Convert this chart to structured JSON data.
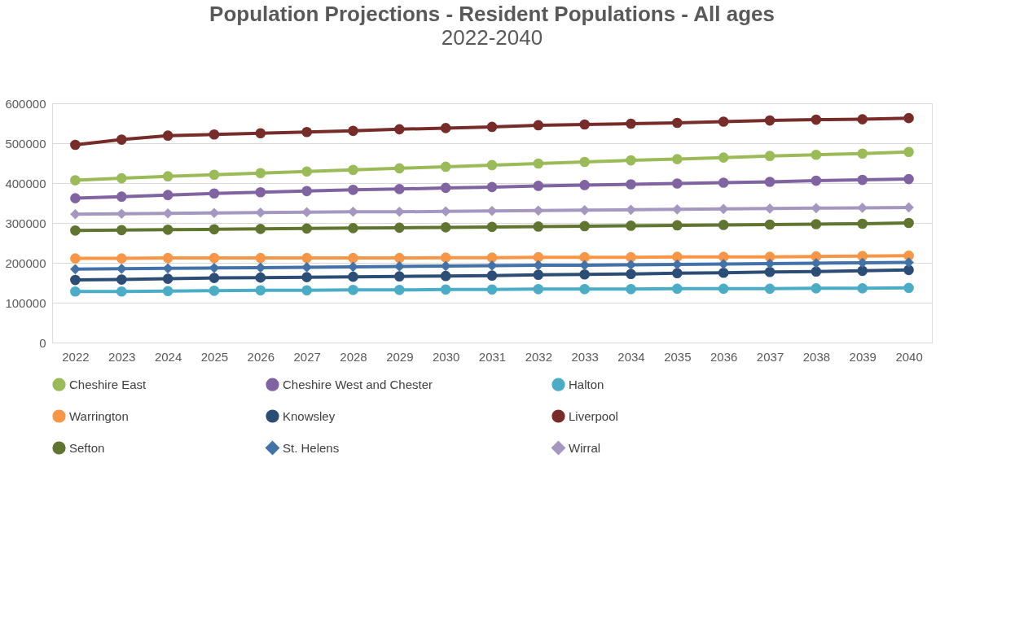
{
  "chart_data": {
    "type": "line",
    "title": "Population Projections - Resident Populations - All ages",
    "subtitle": "2022-2040",
    "categories": [
      "2022",
      "2023",
      "2024",
      "2025",
      "2026",
      "2027",
      "2028",
      "2029",
      "2030",
      "2031",
      "2032",
      "2033",
      "2034",
      "2035",
      "2036",
      "2037",
      "2038",
      "2039",
      "2040"
    ],
    "series": [
      {
        "name": "Cheshire East",
        "color": "#9bbb59",
        "marker": "circle",
        "values": [
          407000,
          412000,
          417000,
          421000,
          425000,
          429000,
          433000,
          437000,
          441000,
          445000,
          449000,
          453000,
          457000,
          460000,
          464000,
          468000,
          471000,
          474000,
          478000
        ]
      },
      {
        "name": "Cheshire West and Chester",
        "color": "#8064a2",
        "marker": "circle",
        "values": [
          362000,
          366000,
          370000,
          374000,
          377000,
          380000,
          383000,
          385000,
          388000,
          390000,
          393000,
          395000,
          397000,
          399000,
          401000,
          403000,
          406000,
          408000,
          410000
        ]
      },
      {
        "name": "Halton",
        "color": "#4bacc6",
        "marker": "circle",
        "values": [
          128000,
          128000,
          129000,
          130000,
          131000,
          131000,
          132000,
          132000,
          133000,
          133000,
          134000,
          134000,
          134000,
          135000,
          135000,
          135000,
          136000,
          136000,
          137000
        ]
      },
      {
        "name": "Warrington",
        "color": "#f79646",
        "marker": "circle",
        "values": [
          211000,
          211000,
          212000,
          212000,
          212000,
          212000,
          212000,
          212000,
          213000,
          213000,
          214000,
          214000,
          214000,
          215000,
          215000,
          215000,
          216000,
          217000,
          218000
        ]
      },
      {
        "name": "Knowsley",
        "color": "#2c4d75",
        "marker": "circle",
        "values": [
          157000,
          158000,
          160000,
          162000,
          163000,
          164000,
          165000,
          166000,
          167000,
          168000,
          170000,
          171000,
          172000,
          174000,
          175000,
          177000,
          178000,
          180000,
          182000
        ]
      },
      {
        "name": "Liverpool",
        "color": "#772c2a",
        "marker": "circle",
        "values": [
          496000,
          509000,
          519000,
          522000,
          525000,
          528000,
          531000,
          535000,
          538000,
          541000,
          545000,
          547000,
          549000,
          551000,
          554000,
          557000,
          559000,
          560000,
          563000
        ]
      },
      {
        "name": "Sefton",
        "color": "#5f7530",
        "marker": "circle",
        "values": [
          281000,
          282000,
          283000,
          284000,
          285000,
          286000,
          287000,
          288000,
          289000,
          290000,
          291000,
          292000,
          293000,
          294000,
          295000,
          296000,
          297000,
          298000,
          300000
        ]
      },
      {
        "name": "St. Helens",
        "color": "#4372a8",
        "marker": "diamond",
        "values": [
          184000,
          185000,
          186000,
          187000,
          188000,
          189000,
          190000,
          191000,
          192000,
          193000,
          194000,
          194000,
          195000,
          196000,
          197000,
          198000,
          199000,
          200000,
          201000
        ]
      },
      {
        "name": "Wirral",
        "color": "#a597c0",
        "marker": "diamond",
        "values": [
          322000,
          323000,
          324000,
          325000,
          326000,
          327000,
          328000,
          328000,
          329000,
          330000,
          331000,
          332000,
          333000,
          334000,
          335000,
          336000,
          337000,
          338000,
          339000
        ]
      }
    ],
    "ylim": [
      0,
      600000
    ],
    "yticks": [
      0,
      100000,
      200000,
      300000,
      400000,
      500000,
      600000
    ],
    "grid": "y",
    "legend": "bottom",
    "line_style": "solid"
  }
}
